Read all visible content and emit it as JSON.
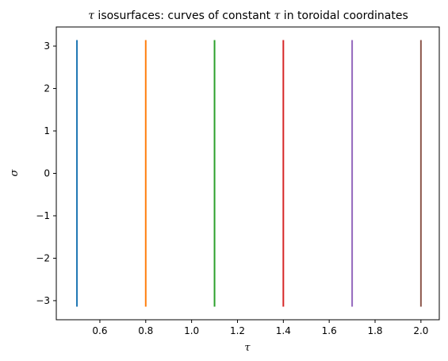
{
  "chart_data": {
    "type": "line",
    "title_parts": [
      "τ",
      " isosurfaces: curves of constant ",
      "τ",
      " in toroidal coordinates"
    ],
    "xlabel": "τ",
    "ylabel": "σ",
    "xlim": [
      0.41,
      2.08
    ],
    "ylim": [
      -3.45,
      3.45
    ],
    "x_ticks": [
      0.6,
      0.8,
      1.0,
      1.2,
      1.4,
      1.6,
      1.8,
      2.0
    ],
    "x_tick_labels": [
      "0.6",
      "0.8",
      "1.0",
      "1.2",
      "1.4",
      "1.6",
      "1.8",
      "2.0"
    ],
    "y_ticks": [
      -3,
      -2,
      -1,
      0,
      1,
      2,
      3
    ],
    "y_tick_labels": [
      "−3",
      "−2",
      "−1",
      "0",
      "1",
      "2",
      "3"
    ],
    "grid": false,
    "series": [
      {
        "tau": 0.5,
        "sigma": [
          -3.14159,
          3.14159
        ],
        "color": "#1f77b4"
      },
      {
        "tau": 0.8,
        "sigma": [
          -3.14159,
          3.14159
        ],
        "color": "#ff7f0e"
      },
      {
        "tau": 1.1,
        "sigma": [
          -3.14159,
          3.14159
        ],
        "color": "#2ca02c"
      },
      {
        "tau": 1.4,
        "sigma": [
          -3.14159,
          3.14159
        ],
        "color": "#d62728"
      },
      {
        "tau": 1.7,
        "sigma": [
          -3.14159,
          3.14159
        ],
        "color": "#9467bd"
      },
      {
        "tau": 2.0,
        "sigma": [
          -3.14159,
          3.14159
        ],
        "color": "#8c564b"
      }
    ]
  }
}
